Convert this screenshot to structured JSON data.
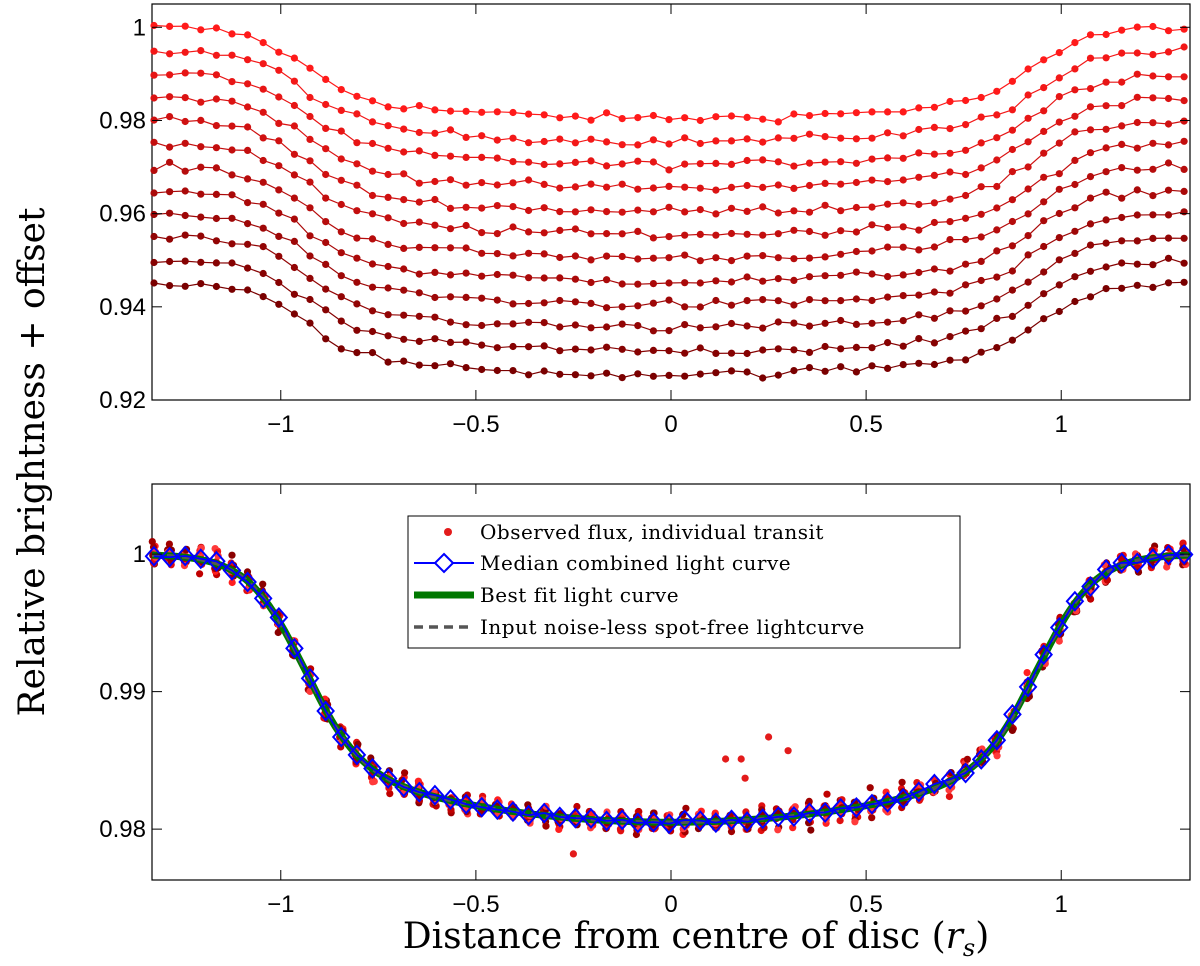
{
  "figure": {
    "ylabel": "Relative brightness + offset",
    "xlabel": "Distance from centre of disc (",
    "xlabel_var": "r",
    "xlabel_sub": "s",
    "xlabel_close": ")"
  },
  "chart_data": [
    {
      "type": "line",
      "panel": "top",
      "xlim": [
        -1.33,
        1.33
      ],
      "ylim": [
        0.92,
        1.005
      ],
      "x_ticks": [
        -1,
        -0.5,
        0,
        0.5,
        1
      ],
      "x_tick_labels": [
        "−1",
        "−0.5",
        "0",
        "0.5",
        "1"
      ],
      "y_ticks": [
        0.92,
        0.94,
        0.96,
        0.98,
        1
      ],
      "y_tick_labels": [
        "0.92",
        "0.94",
        "0.96",
        "0.98",
        "1"
      ],
      "x_step": 0.04,
      "transit_shape": {
        "depth": 0.0195,
        "ingress_center": 0.95,
        "ingress_width": 0.07,
        "curvature": 0.0006
      },
      "series_color_range": [
        "#ff1a1a",
        "#7a0000"
      ],
      "series": [
        {
          "offset": 1.0
        },
        {
          "offset": 0.995
        },
        {
          "offset": 0.99
        },
        {
          "offset": 0.985
        },
        {
          "offset": 0.98
        },
        {
          "offset": 0.975
        },
        {
          "offset": 0.97
        },
        {
          "offset": 0.965
        },
        {
          "offset": 0.96
        },
        {
          "offset": 0.955
        },
        {
          "offset": 0.95
        },
        {
          "offset": 0.945
        }
      ],
      "legend": "none",
      "grid": false
    },
    {
      "type": "line",
      "panel": "bottom",
      "xlim": [
        -1.33,
        1.33
      ],
      "ylim": [
        0.9763,
        1.0051
      ],
      "x_ticks": [
        -1,
        -0.5,
        0,
        0.5,
        1
      ],
      "x_tick_labels": [
        "−1",
        "−0.5",
        "0",
        "0.5",
        "1"
      ],
      "y_ticks": [
        0.98,
        0.99,
        1
      ],
      "y_tick_labels": [
        "0.98",
        "0.99",
        "1"
      ],
      "model": {
        "depth": 0.0195,
        "ingress_center": 0.95,
        "ingress_width": 0.07,
        "curvature": 0.0006,
        "x_step": 0.01
      },
      "median_x_step": 0.04,
      "scatter_samples_per_x": 12,
      "scatter_spread": 0.0009,
      "outliers": [
        {
          "x": 0.14,
          "y": 0.9851
        },
        {
          "x": 0.18,
          "y": 0.9851
        },
        {
          "x": 0.25,
          "y": 0.9867
        },
        {
          "x": 0.3,
          "y": 0.9857
        },
        {
          "x": -0.25,
          "y": 0.9782
        },
        {
          "x": 0.19,
          "y": 0.9837
        }
      ],
      "legend": {
        "placement": "top-center",
        "entries": [
          {
            "label": "Observed flux, individual transit",
            "style": "dot",
            "color": "#e31b1b"
          },
          {
            "label": "Median combined light curve",
            "style": "diamond-line",
            "color": "#0000ff"
          },
          {
            "label": "Best fit light curve",
            "style": "thick-line",
            "color": "#007800"
          },
          {
            "label": "Input noise-less spot-free lightcurve",
            "style": "dashed-line",
            "color": "#555555"
          }
        ]
      },
      "grid": false
    }
  ]
}
